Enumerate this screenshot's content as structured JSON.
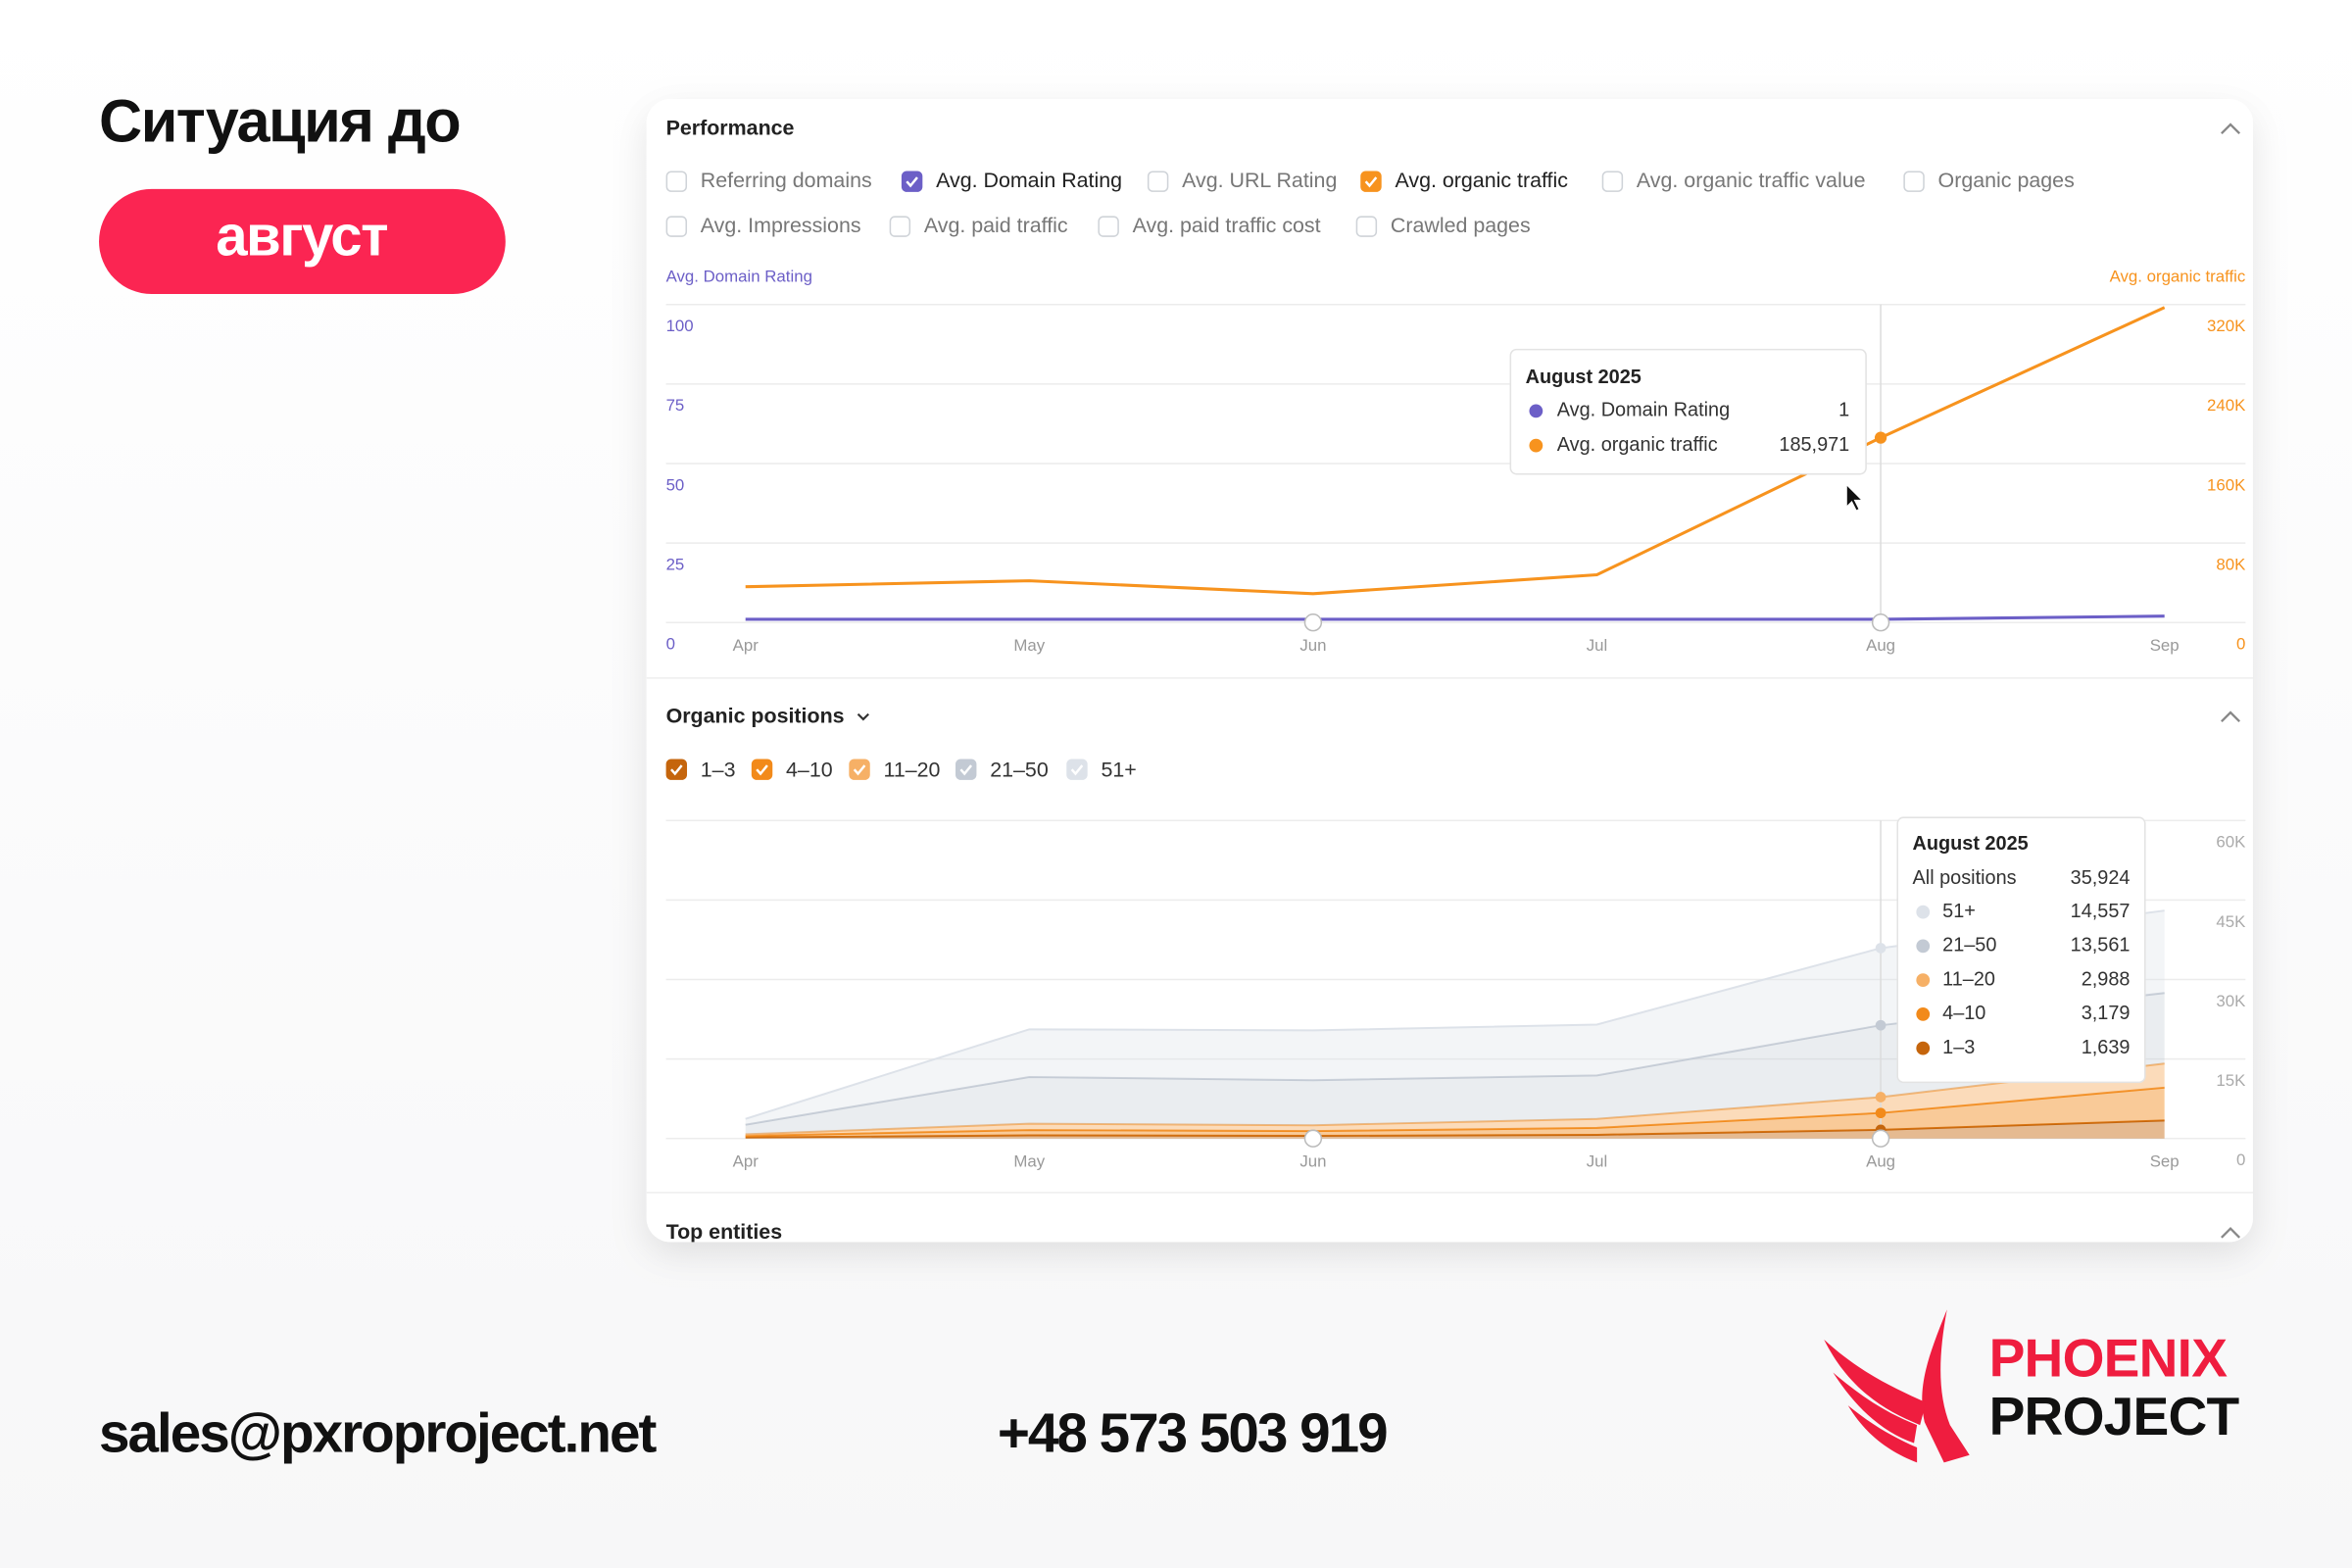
{
  "slide": {
    "title": "Ситуация до",
    "badge": "август",
    "email": "sales@pxroproject.net",
    "phone": "+48 573 503 919",
    "logo": {
      "line1": "PHOENIX",
      "line2": "PROJECT"
    }
  },
  "panel": {
    "sections": [
      "Performance",
      "Organic positions",
      "Top entities"
    ],
    "metrics": [
      {
        "label": "Referring domains",
        "checked": false
      },
      {
        "label": "Avg. Domain Rating",
        "checked": true
      },
      {
        "label": "Avg. URL Rating",
        "checked": false
      },
      {
        "label": "Avg. organic traffic",
        "checked": true
      },
      {
        "label": "Avg. organic traffic value",
        "checked": false
      },
      {
        "label": "Organic pages",
        "checked": false
      },
      {
        "label": "Avg. Impressions",
        "checked": false
      },
      {
        "label": "Avg. paid traffic",
        "checked": false
      },
      {
        "label": "Avg. paid traffic cost",
        "checked": false
      },
      {
        "label": "Crawled pages",
        "checked": false
      }
    ]
  },
  "chart_data": [
    {
      "type": "line",
      "categories": [
        "Apr",
        "May",
        "Jun",
        "Jul",
        "Aug",
        "Sep"
      ],
      "y_label": "Avg. Domain Rating",
      "y2_label": "Avg. organic traffic",
      "series": [
        {
          "name": "Avg. Domain Rating",
          "color": "#6c5fc7",
          "values": [
            1,
            1,
            1,
            1,
            1,
            2
          ]
        },
        {
          "name": "Avg. organic traffic",
          "color": "#f7931e",
          "axis": "y2",
          "values": [
            36000,
            42000,
            29000,
            48000,
            185971,
            317000
          ],
          "value_labels": [
            null,
            null,
            null,
            null,
            "185,971",
            null
          ]
        }
      ],
      "ylim": [
        0,
        100
      ],
      "yticks": [
        0,
        25,
        50,
        75,
        100
      ],
      "y2lim": [
        0,
        320000
      ],
      "y2ticks": [
        0,
        {
          "value": 80000,
          "label": "80K"
        },
        {
          "value": 160000,
          "label": "160K"
        },
        {
          "value": 240000,
          "label": "240K"
        },
        {
          "value": 320000,
          "label": "320K"
        }
      ],
      "grid": true,
      "tooltip": {
        "title": "August 2025"
      }
    },
    {
      "type": "area",
      "stacked": true,
      "categories": [
        "Apr",
        "May",
        "Jun",
        "Jul",
        "Aug",
        "Sep"
      ],
      "series": [
        {
          "name": "1–3",
          "color": "#c5650c",
          "values": [
            200,
            600,
            500,
            700,
            1639,
            3400
          ],
          "value_labels": [
            null,
            null,
            null,
            null,
            "1,639",
            null
          ]
        },
        {
          "name": "4–10",
          "color": "#f28a1a",
          "values": [
            300,
            1000,
            900,
            1300,
            3179,
            6200
          ],
          "value_labels": [
            null,
            null,
            null,
            null,
            "3,179",
            null
          ]
        },
        {
          "name": "11–20",
          "color": "#f6b066",
          "values": [
            300,
            1200,
            1100,
            1700,
            2988,
            4550
          ],
          "value_labels": [
            null,
            null,
            null,
            null,
            "2,988",
            null
          ]
        },
        {
          "name": "21–50",
          "color": "#c3cad4",
          "values": [
            1800,
            8800,
            8500,
            8200,
            13561,
            13300
          ],
          "value_labels": [
            null,
            null,
            null,
            null,
            "13,561",
            null
          ]
        },
        {
          "name": "51+",
          "color": "#dde2e9",
          "values": [
            1100,
            9000,
            9400,
            9600,
            14557,
            15550
          ],
          "value_labels": [
            null,
            null,
            null,
            null,
            "14,557",
            null
          ]
        }
      ],
      "ylim": [
        0,
        60000
      ],
      "yticks": [
        0,
        {
          "value": 15000,
          "label": "15K"
        },
        {
          "value": 30000,
          "label": "30K"
        },
        {
          "value": 45000,
          "label": "45K"
        },
        {
          "value": 60000,
          "label": "60K"
        }
      ],
      "yaxis_position": "right",
      "grid": true,
      "tooltip": {
        "title": "August 2025",
        "total_name": "All positions",
        "total": {
          "value": 35924,
          "label": "35,924"
        }
      }
    }
  ]
}
